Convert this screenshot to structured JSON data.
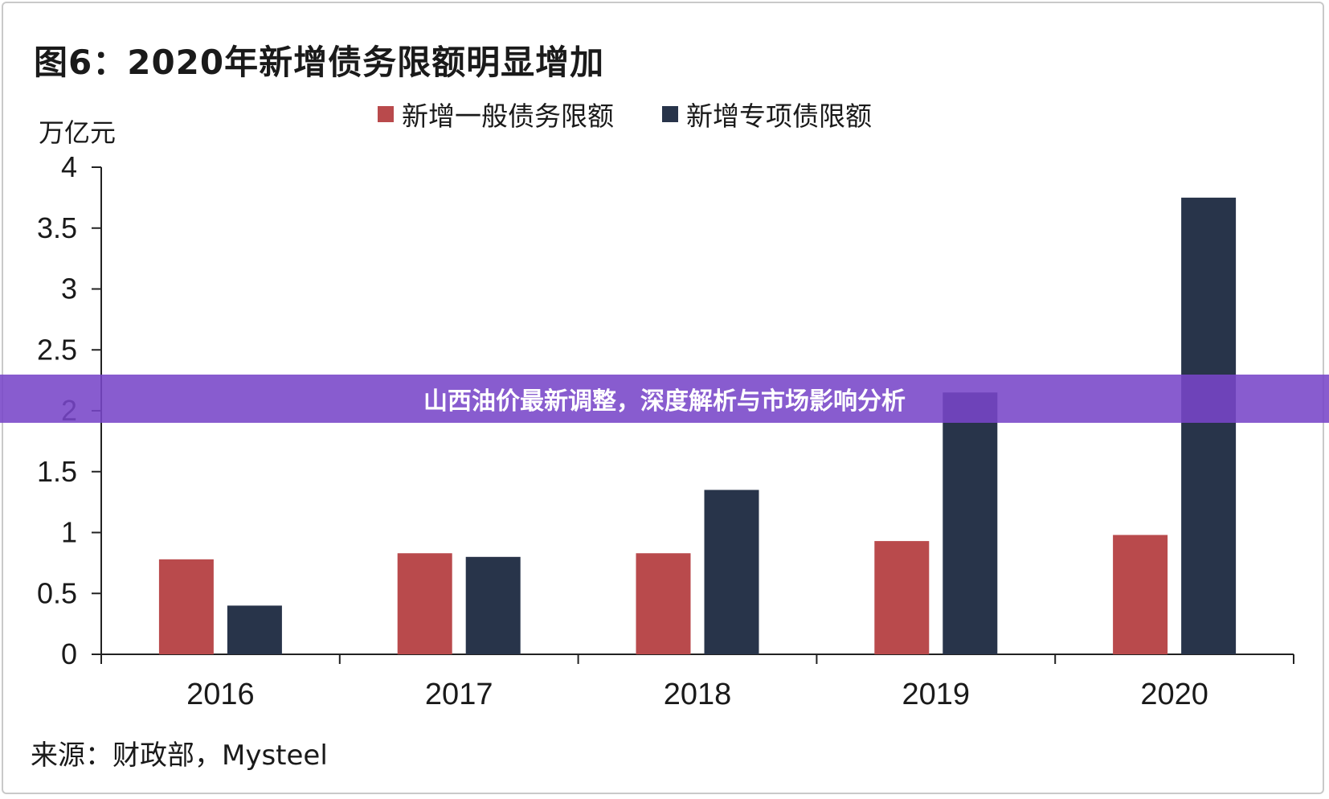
{
  "chart_data": {
    "type": "bar",
    "title": "图6：2020年新增债务限额明显增加",
    "ylabel": "万亿元",
    "xlabel": "",
    "categories": [
      "2016",
      "2017",
      "2018",
      "2019",
      "2020"
    ],
    "series": [
      {
        "name": "新增一般债务限额",
        "color": "#b94a4c",
        "values": [
          0.78,
          0.83,
          0.83,
          0.93,
          0.98
        ]
      },
      {
        "name": "新增专项债限额",
        "color": "#28344a",
        "values": [
          0.4,
          0.8,
          1.35,
          2.15,
          3.75
        ]
      }
    ],
    "ylim": [
      0,
      4
    ],
    "yticks": [
      "0",
      "0.5",
      "1",
      "1.5",
      "2",
      "2.5",
      "3",
      "3.5",
      "4"
    ],
    "grid": false,
    "legend": "top-center"
  },
  "source": "来源：财政部，Mysteel",
  "banner": {
    "text": "山西油价最新调整，深度解析与市场影响分析"
  }
}
